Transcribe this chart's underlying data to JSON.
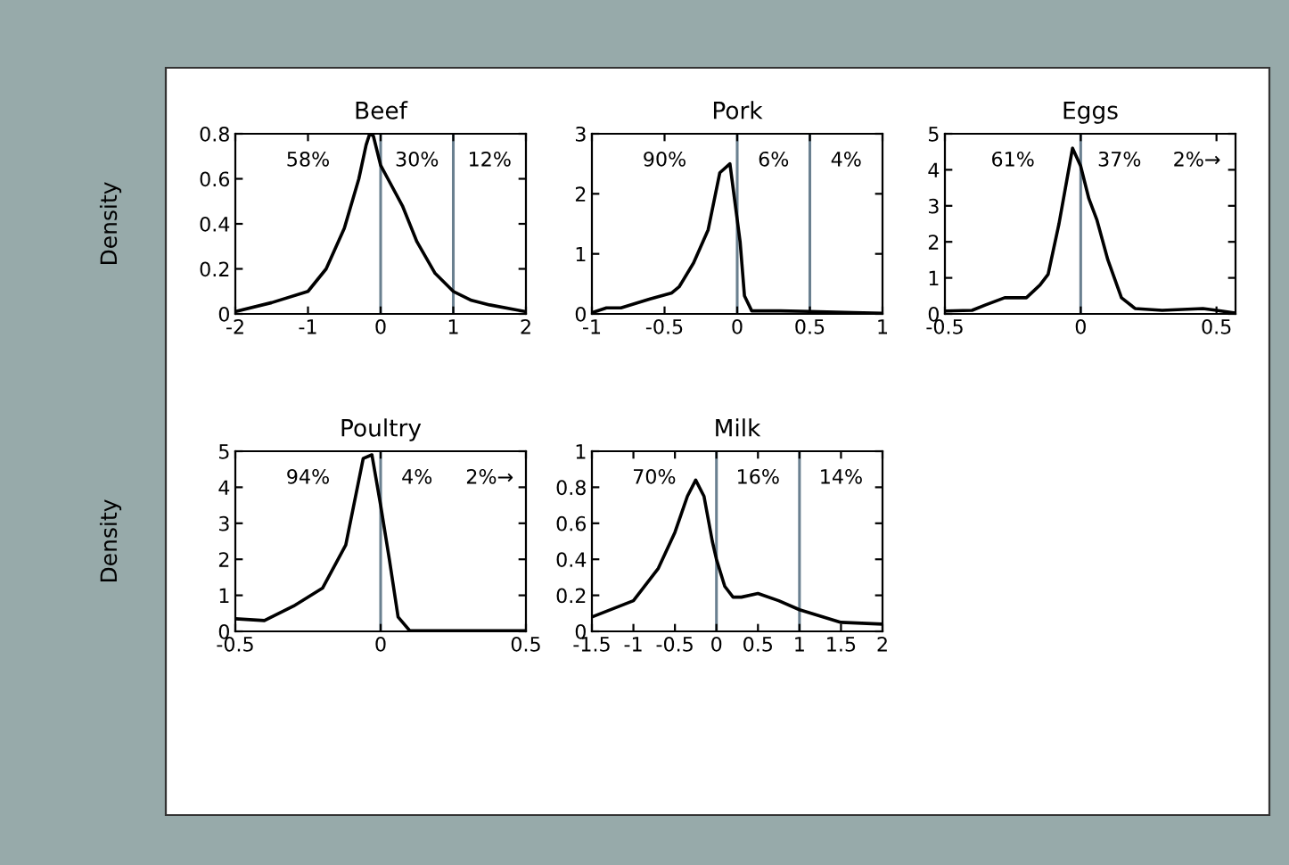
{
  "chart_data": [
    {
      "type": "line",
      "title": "Beef",
      "ylabel": "Density",
      "xlim": [
        -2,
        2
      ],
      "xticks": [
        -2,
        -1,
        0,
        1,
        2
      ],
      "ylim": [
        0,
        0.8
      ],
      "yticks": [
        0,
        0.2,
        0.4,
        0.6,
        0.8
      ],
      "grid": false,
      "legend": false,
      "series": [
        {
          "color": "#000000",
          "x": [
            -2,
            -1.5,
            -1,
            -0.75,
            -0.5,
            -0.3,
            -0.2,
            -0.15,
            -0.1,
            0,
            0.1,
            0.3,
            0.5,
            0.75,
            1,
            1.25,
            1.5,
            2
          ],
          "values": [
            0.01,
            0.05,
            0.1,
            0.2,
            0.38,
            0.6,
            0.75,
            0.8,
            0.79,
            0.66,
            0.6,
            0.48,
            0.32,
            0.18,
            0.1,
            0.06,
            0.04,
            0.01
          ]
        }
      ],
      "ref_lines": [
        {
          "axis": "x",
          "value": 0,
          "color": "#6a8090"
        },
        {
          "axis": "x",
          "value": 1,
          "color": "#6a8090"
        }
      ],
      "annotations": [
        "58%",
        "30%",
        "12%"
      ]
    },
    {
      "type": "line",
      "title": "Pork",
      "xlim": [
        -1,
        1
      ],
      "xticks": [
        -1,
        -0.5,
        0,
        0.5,
        1
      ],
      "ylim": [
        0,
        3
      ],
      "yticks": [
        0,
        1,
        2,
        3
      ],
      "grid": false,
      "legend": false,
      "series": [
        {
          "color": "#000000",
          "x": [
            -1,
            -0.9,
            -0.8,
            -0.6,
            -0.45,
            -0.4,
            -0.3,
            -0.2,
            -0.12,
            -0.05,
            0.02,
            0.05,
            0.1,
            0.3,
            0.5,
            0.8,
            1
          ],
          "values": [
            0.02,
            0.1,
            0.1,
            0.25,
            0.35,
            0.45,
            0.85,
            1.4,
            2.35,
            2.5,
            1.2,
            0.3,
            0.05,
            0.05,
            0.04,
            0.02,
            0.01
          ]
        }
      ],
      "ref_lines": [
        {
          "axis": "x",
          "value": 0,
          "color": "#6a8090"
        },
        {
          "axis": "x",
          "value": 0.5,
          "color": "#6a8090"
        }
      ],
      "annotations": [
        "90%",
        "6%",
        "4%"
      ]
    },
    {
      "type": "line",
      "title": "Eggs",
      "xlim": [
        -0.5,
        0.57
      ],
      "xticks": [
        -0.5,
        0,
        0.5
      ],
      "ylim": [
        0,
        5
      ],
      "yticks": [
        0,
        1,
        2,
        3,
        4,
        5
      ],
      "grid": false,
      "legend": false,
      "series": [
        {
          "color": "#000000",
          "x": [
            -0.5,
            -0.4,
            -0.35,
            -0.28,
            -0.2,
            -0.15,
            -0.12,
            -0.08,
            -0.03,
            0,
            0.03,
            0.06,
            0.1,
            0.15,
            0.2,
            0.3,
            0.45,
            0.5,
            0.57
          ],
          "values": [
            0.08,
            0.1,
            0.25,
            0.45,
            0.45,
            0.8,
            1.1,
            2.5,
            4.6,
            4.1,
            3.2,
            2.6,
            1.5,
            0.45,
            0.15,
            0.1,
            0.15,
            0.1,
            0.02
          ]
        }
      ],
      "ref_lines": [
        {
          "axis": "x",
          "value": 0,
          "color": "#6a8090"
        }
      ],
      "annotations": [
        "61%",
        "37%",
        "2%→"
      ]
    },
    {
      "type": "line",
      "title": "Poultry",
      "ylabel": "Density",
      "xlim": [
        -0.5,
        0.5
      ],
      "xticks": [
        -0.5,
        0,
        0.5
      ],
      "ylim": [
        0,
        5
      ],
      "yticks": [
        0,
        1,
        2,
        3,
        4,
        5
      ],
      "grid": false,
      "legend": false,
      "series": [
        {
          "color": "#000000",
          "x": [
            -0.5,
            -0.4,
            -0.3,
            -0.2,
            -0.12,
            -0.06,
            -0.03,
            0,
            0.03,
            0.06,
            0.1,
            0.5
          ],
          "values": [
            0.35,
            0.3,
            0.7,
            1.2,
            2.4,
            4.8,
            4.9,
            3.5,
            2,
            0.4,
            0.02,
            0.02
          ]
        }
      ],
      "ref_lines": [
        {
          "axis": "x",
          "value": 0,
          "color": "#6a8090"
        }
      ],
      "annotations": [
        "94%",
        "4%",
        "2%→"
      ]
    },
    {
      "type": "line",
      "title": "Milk",
      "xlim": [
        -1.5,
        2
      ],
      "xticks": [
        -1.5,
        -1,
        -0.5,
        0,
        0.5,
        1,
        1.5,
        2
      ],
      "ylim": [
        0,
        1
      ],
      "yticks": [
        0,
        0.2,
        0.4,
        0.6,
        0.8,
        1
      ],
      "grid": false,
      "legend": false,
      "series": [
        {
          "color": "#000000",
          "x": [
            -1.5,
            -1,
            -0.7,
            -0.5,
            -0.35,
            -0.25,
            -0.15,
            -0.05,
            0,
            0.1,
            0.2,
            0.3,
            0.5,
            0.75,
            1,
            1.5,
            2
          ],
          "values": [
            0.08,
            0.17,
            0.35,
            0.55,
            0.75,
            0.84,
            0.75,
            0.5,
            0.4,
            0.25,
            0.19,
            0.19,
            0.21,
            0.17,
            0.12,
            0.05,
            0.04
          ]
        }
      ],
      "ref_lines": [
        {
          "axis": "x",
          "value": 0,
          "color": "#6a8090"
        },
        {
          "axis": "x",
          "value": 1,
          "color": "#6a8090"
        }
      ],
      "annotations": [
        "70%",
        "16%",
        "14%"
      ]
    }
  ]
}
